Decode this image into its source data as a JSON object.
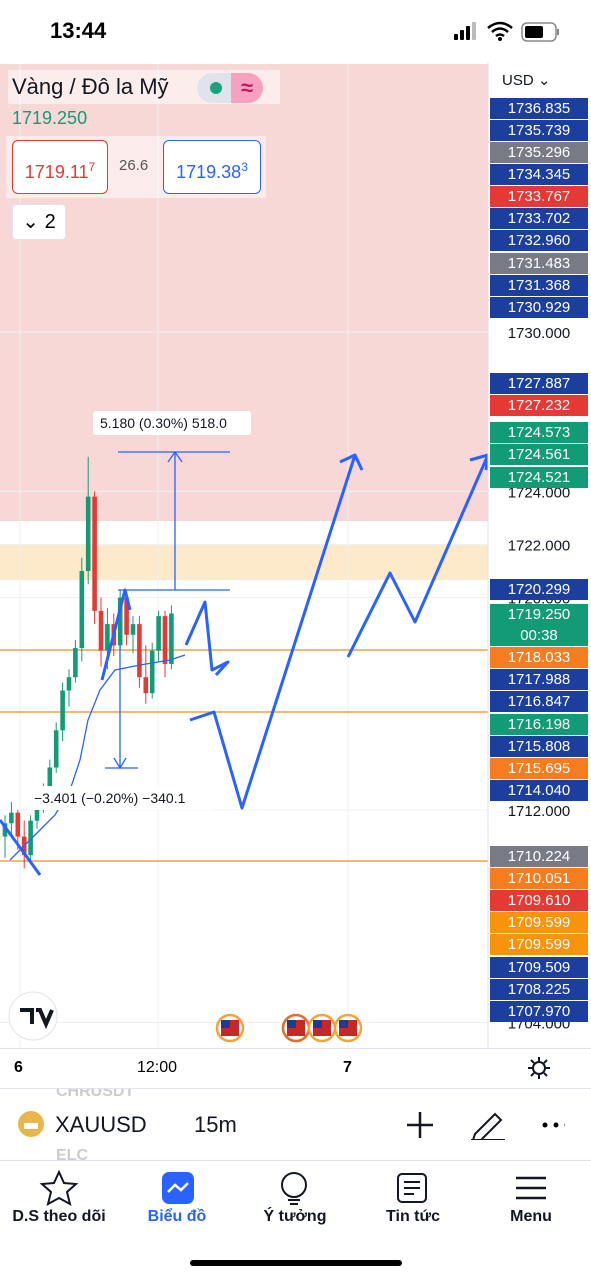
{
  "status_bar": {
    "time": "13:44"
  },
  "header": {
    "symbol_name": "Vàng / Đô la Mỹ",
    "last_price": "1719.250",
    "bid": {
      "main": "1719.11",
      "sup": "7"
    },
    "spread": "26.6",
    "ask": {
      "main": "1719.38",
      "sup": "3"
    },
    "collapsed_count": "2"
  },
  "currency": "USD",
  "price_axis": {
    "ticks": [
      {
        "value": 1730,
        "label": "1730.000"
      },
      {
        "value": 1724,
        "label": "1724.000"
      },
      {
        "value": 1722,
        "label": "1722.000"
      },
      {
        "value": 1720,
        "label": "1720.000"
      },
      {
        "value": 1712,
        "label": "1712.000"
      },
      {
        "value": 1704,
        "label": "1704.000"
      }
    ],
    "markers": [
      {
        "label": "1736.835",
        "color": "#1c3f9e"
      },
      {
        "label": "1735.739",
        "color": "#1c3f9e"
      },
      {
        "label": "1735.296",
        "color": "#787b86"
      },
      {
        "label": "1734.345",
        "color": "#1c3f9e"
      },
      {
        "label": "1733.767",
        "color": "#e53935"
      },
      {
        "label": "1733.702",
        "color": "#1c3f9e"
      },
      {
        "label": "1732.960",
        "color": "#1c3f9e"
      },
      {
        "label": "1731.483",
        "color": "#787b86"
      },
      {
        "label": "1731.368",
        "color": "#1c3f9e"
      },
      {
        "label": "1730.929",
        "color": "#1c3f9e"
      },
      {
        "label": "1727.887",
        "color": "#1c3f9e"
      },
      {
        "label": "1727.232",
        "color": "#e53935"
      },
      {
        "label": "1724.573",
        "color": "#139b76"
      },
      {
        "label": "1724.561",
        "color": "#139b76"
      },
      {
        "label": "1724.521",
        "color": "#139b76"
      },
      {
        "label": "1720.299",
        "color": "#1c3f9e"
      },
      {
        "label": "1718.033",
        "color": "#f57c1f"
      },
      {
        "label": "1717.988",
        "color": "#1c3f9e"
      },
      {
        "label": "1716.847",
        "color": "#1c3f9e"
      },
      {
        "label": "1716.198",
        "color": "#139b76"
      },
      {
        "label": "1715.808",
        "color": "#1c3f9e"
      },
      {
        "label": "1715.695",
        "color": "#f57c1f"
      },
      {
        "label": "1714.040",
        "color": "#1c3f9e"
      },
      {
        "label": "1710.224",
        "color": "#787b86"
      },
      {
        "label": "1710.051",
        "color": "#f57c1f"
      },
      {
        "label": "1709.610",
        "color": "#e53935"
      },
      {
        "label": "1709.599",
        "color": "#f7930d"
      },
      {
        "label": "1709.599",
        "color": "#f7930d"
      },
      {
        "label": "1709.509",
        "color": "#1c3f9e"
      },
      {
        "label": "1708.225",
        "color": "#1c3f9e"
      },
      {
        "label": "1707.970",
        "color": "#1c3f9e"
      }
    ],
    "current": {
      "price": "1719.250",
      "countdown": "00:38",
      "color": "#139b76"
    }
  },
  "measurements": [
    "5.180 (0.30%) 518.0",
    "−3.401 (−0.20%) −340.1"
  ],
  "candles": [
    {
      "open": 1711.0,
      "high": 1711.8,
      "low": 1710.2,
      "close": 1711.5
    },
    {
      "open": 1711.5,
      "high": 1712.3,
      "low": 1711.0,
      "close": 1711.9
    },
    {
      "open": 1711.9,
      "high": 1712.0,
      "low": 1710.5,
      "close": 1711.0
    },
    {
      "open": 1711.0,
      "high": 1711.6,
      "low": 1709.8,
      "close": 1710.3
    },
    {
      "open": 1710.3,
      "high": 1711.8,
      "low": 1710.1,
      "close": 1711.6
    },
    {
      "open": 1711.6,
      "high": 1712.6,
      "low": 1711.3,
      "close": 1712.4
    },
    {
      "open": 1712.4,
      "high": 1713.0,
      "low": 1711.9,
      "close": 1712.8
    },
    {
      "open": 1712.8,
      "high": 1713.9,
      "low": 1712.5,
      "close": 1713.6
    },
    {
      "open": 1713.6,
      "high": 1715.3,
      "low": 1713.4,
      "close": 1715.0
    },
    {
      "open": 1715.0,
      "high": 1716.8,
      "low": 1714.6,
      "close": 1716.5
    },
    {
      "open": 1716.5,
      "high": 1717.3,
      "low": 1715.9,
      "close": 1717.0
    },
    {
      "open": 1717.0,
      "high": 1718.4,
      "low": 1716.8,
      "close": 1718.1
    },
    {
      "open": 1718.1,
      "high": 1721.5,
      "low": 1717.6,
      "close": 1721.0
    },
    {
      "open": 1721.0,
      "high": 1725.3,
      "low": 1720.5,
      "close": 1723.8
    },
    {
      "open": 1723.8,
      "high": 1724.0,
      "low": 1719.0,
      "close": 1719.5
    },
    {
      "open": 1719.5,
      "high": 1720.0,
      "low": 1717.4,
      "close": 1718.0
    },
    {
      "open": 1718.0,
      "high": 1719.6,
      "low": 1717.3,
      "close": 1719.0
    },
    {
      "open": 1719.0,
      "high": 1719.4,
      "low": 1717.8,
      "close": 1718.2
    },
    {
      "open": 1718.2,
      "high": 1720.3,
      "low": 1718.0,
      "close": 1720.0
    },
    {
      "open": 1720.0,
      "high": 1720.2,
      "low": 1718.2,
      "close": 1718.6
    },
    {
      "open": 1718.6,
      "high": 1719.3,
      "low": 1717.9,
      "close": 1719.0
    },
    {
      "open": 1719.0,
      "high": 1719.3,
      "low": 1716.6,
      "close": 1717.0
    },
    {
      "open": 1717.0,
      "high": 1718.2,
      "low": 1716.0,
      "close": 1716.4
    },
    {
      "open": 1716.4,
      "high": 1718.3,
      "low": 1716.2,
      "close": 1718.0
    },
    {
      "open": 1718.0,
      "high": 1719.5,
      "low": 1717.6,
      "close": 1719.3
    },
    {
      "open": 1719.3,
      "high": 1719.5,
      "low": 1717.0,
      "close": 1717.5
    },
    {
      "open": 1717.5,
      "high": 1719.7,
      "low": 1717.3,
      "close": 1719.4
    }
  ],
  "time_axis": [
    "6",
    "12:00",
    "7"
  ],
  "toolbar": {
    "faded_above": "CHRUSDT",
    "faded_below": "ELC",
    "symbol": "XAUUSD",
    "interval": "15m"
  },
  "nav": [
    "D.S theo dõi",
    "Biểu đồ",
    "Ý tưởng",
    "Tin tức",
    "Menu"
  ]
}
